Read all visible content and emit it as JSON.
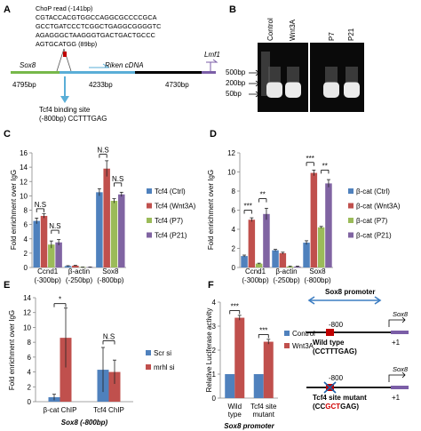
{
  "panel_letters": {
    "A": "A",
    "B": "B",
    "C": "C",
    "D": "D",
    "E": "E",
    "F": "F"
  },
  "panelA": {
    "chop_read": [
      "ChoP read (-141bp)",
      "CGTACCACGTGGCCAGGCGCCCCGCA",
      "GCCTGATCCCTCGGCTGAGGCGGGGTC",
      "AGAGGGCTAAGGGTGACTGACTGCCC",
      "AGTGCATGG (89bp)"
    ],
    "genes": {
      "sox8": "Sox8",
      "riken": "Riken cDNA",
      "lmf1": "Lmf1"
    },
    "lengths": {
      "sox8": "4795bp",
      "riken": "4233bp",
      "lmf1": "4730bp"
    },
    "binding_site": [
      "Tcf4 binding site",
      "(-800bp) CCTTTGAG"
    ]
  },
  "panelB": {
    "lanes": [
      "Control",
      "Wnt3A",
      "P7",
      "P21"
    ],
    "ladder": [
      "500bp",
      "200bp",
      "50bp"
    ]
  },
  "chart_data": [
    {
      "panel": "C",
      "type": "bar",
      "ylabel": "Fold enrichment over IgG",
      "ylim": [
        0,
        16
      ],
      "yticks": [
        0,
        2,
        4,
        6,
        8,
        10,
        12,
        14,
        16
      ],
      "categories": [
        [
          "Ccnd1",
          "(-300bp)"
        ],
        [
          "β-actin",
          "(-250bp)"
        ],
        [
          "Sox8",
          "(-800bp)"
        ]
      ],
      "series": [
        {
          "name": "Tcf4 (Ctrl)",
          "color": "#4f81bd",
          "values": [
            6.5,
            0.2,
            10.5
          ],
          "errors": [
            0.4,
            0.05,
            0.5
          ]
        },
        {
          "name": "Tcf4 (Wnt3A)",
          "color": "#c0504d",
          "values": [
            7.2,
            0.25,
            13.8
          ],
          "errors": [
            0.3,
            0.05,
            1.1
          ]
        },
        {
          "name": "Tcf4 (P7)",
          "color": "#9bbb59",
          "values": [
            3.2,
            0.05,
            9.3
          ],
          "errors": [
            0.5,
            0.02,
            0.3
          ]
        },
        {
          "name": "Tcf4 (P21)",
          "color": "#8064a2",
          "values": [
            3.5,
            0.05,
            10.2
          ],
          "errors": [
            0.4,
            0.02,
            0.3
          ]
        }
      ],
      "annotations": [
        "N.S",
        "N.S",
        "N.S",
        "N.S"
      ]
    },
    {
      "panel": "D",
      "type": "bar",
      "ylabel": "Fold enrichment over IgG",
      "ylim": [
        0,
        12
      ],
      "yticks": [
        0,
        2,
        4,
        6,
        8,
        10,
        12
      ],
      "categories": [
        [
          "Ccnd1",
          "(-300bp)"
        ],
        [
          "β-actin",
          "(-250bp)"
        ],
        [
          "Sox8",
          "(-800bp)"
        ]
      ],
      "series": [
        {
          "name": "β-cat (Ctrl)",
          "color": "#4f81bd",
          "values": [
            1.2,
            1.8,
            2.6
          ],
          "errors": [
            0.1,
            0.1,
            0.2
          ]
        },
        {
          "name": "β-cat (Wnt3A)",
          "color": "#c0504d",
          "values": [
            5.0,
            1.5,
            9.9
          ],
          "errors": [
            0.2,
            0.1,
            0.3
          ]
        },
        {
          "name": "β-cat (P7)",
          "color": "#9bbb59",
          "values": [
            0.4,
            0.1,
            4.2
          ],
          "errors": [
            0.05,
            0.05,
            0.1
          ]
        },
        {
          "name": "β-cat (P21)",
          "color": "#8064a2",
          "values": [
            5.6,
            0.1,
            8.8
          ],
          "errors": [
            0.6,
            0.05,
            0.4
          ]
        }
      ],
      "annotations": [
        "***",
        "**",
        "***",
        "**"
      ]
    },
    {
      "panel": "E",
      "type": "bar",
      "ylabel": "Fold enrichment over IgG",
      "ylim": [
        0,
        14
      ],
      "yticks": [
        0,
        2,
        4,
        6,
        8,
        10,
        12,
        14
      ],
      "categories": [
        [
          "β-cat ChIP"
        ],
        [
          "Tcf4 ChIP"
        ]
      ],
      "xlabel": "Sox8 (-800bp)",
      "series": [
        {
          "name": "Scr si",
          "color": "#4f81bd",
          "values": [
            0.6,
            4.3
          ],
          "errors": [
            0.4,
            3.0
          ]
        },
        {
          "name": "mrhl si",
          "color": "#c0504d",
          "values": [
            8.6,
            4.0
          ],
          "errors": [
            4.0,
            1.6
          ]
        }
      ],
      "annotations": [
        "*",
        "N.S"
      ]
    },
    {
      "panel": "F",
      "type": "bar",
      "ylabel": "Relative Luciferase activity",
      "ylim": [
        0,
        4
      ],
      "yticks": [
        0,
        1,
        2,
        3,
        4
      ],
      "categories": [
        [
          "Wild",
          "type"
        ],
        [
          "Tcf4 site",
          "mutant"
        ]
      ],
      "xlabel": "Sox8 promoter",
      "series": [
        {
          "name": "Control",
          "color": "#4f81bd",
          "values": [
            1.0,
            1.0
          ],
          "errors": [
            0,
            0
          ]
        },
        {
          "name": "Wnt3A",
          "color": "#c0504d",
          "values": [
            3.35,
            2.35
          ],
          "errors": [
            0.1,
            0.1
          ]
        }
      ],
      "annotations": [
        "***",
        "***"
      ]
    }
  ],
  "promoter_diagram": {
    "title": "Sox8 promoter",
    "gene": "Sox8",
    "pos": "-800",
    "tss": "+1",
    "wild_label": "Wild type",
    "wild_seq": "(CCTTTGAG)",
    "mut_label": "Tcf4 site mutant",
    "mut_seq_pre": "(CC",
    "mut_seq_red": "GCT",
    "mut_seq_post": "GAG)"
  }
}
